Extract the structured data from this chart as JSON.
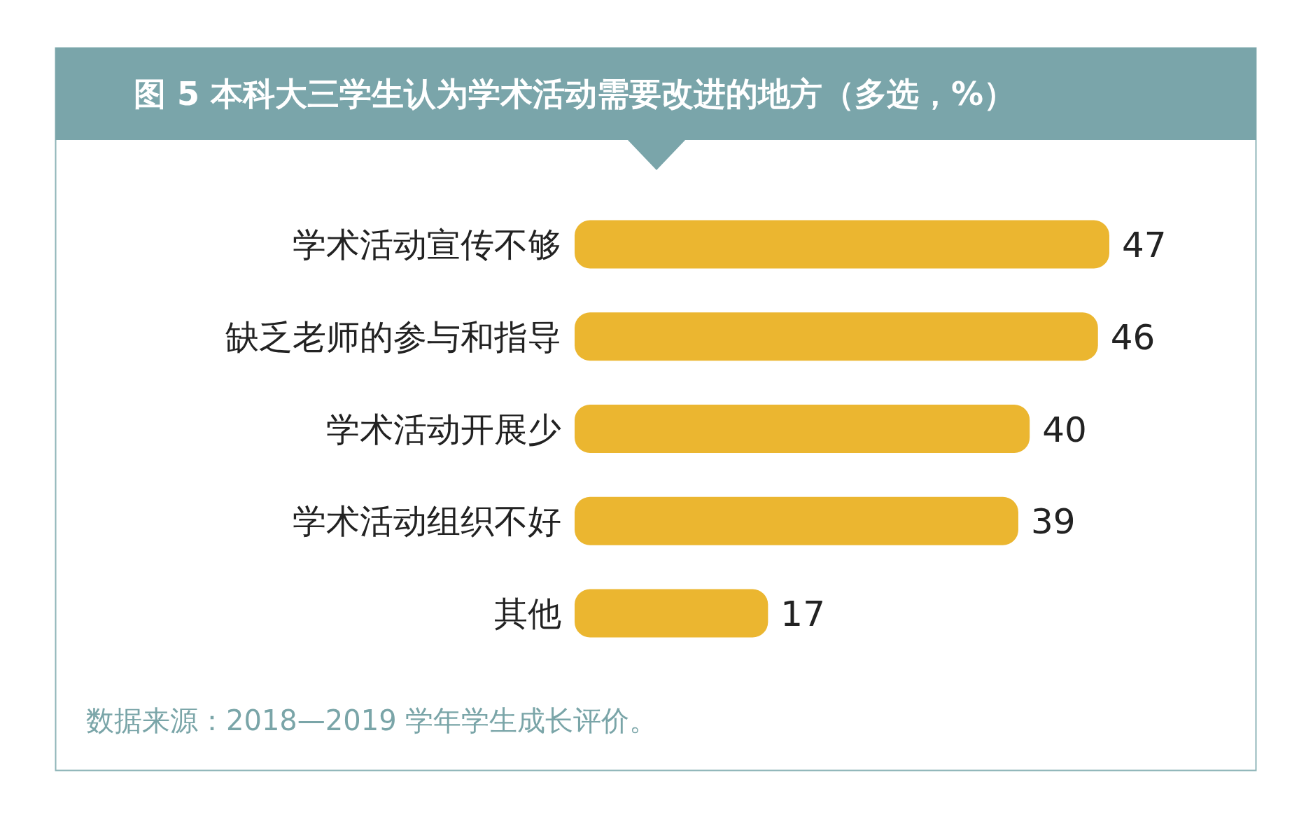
{
  "chart_data": {
    "type": "bar",
    "orientation": "horizontal",
    "title": "图 5 本科大三学生认为学术活动需要改进的地方（多选，%）",
    "categories": [
      "学术活动宣传不够",
      "缺乏老师的参与和指导",
      "学术活动开展少",
      "学术活动组织不好",
      "其他"
    ],
    "values": [
      47,
      46,
      40,
      39,
      17
    ],
    "color": "#ebb630",
    "data_labels": true,
    "annotations": [
      "数据来源：2018—2019 学年学生成长评价。"
    ]
  }
}
